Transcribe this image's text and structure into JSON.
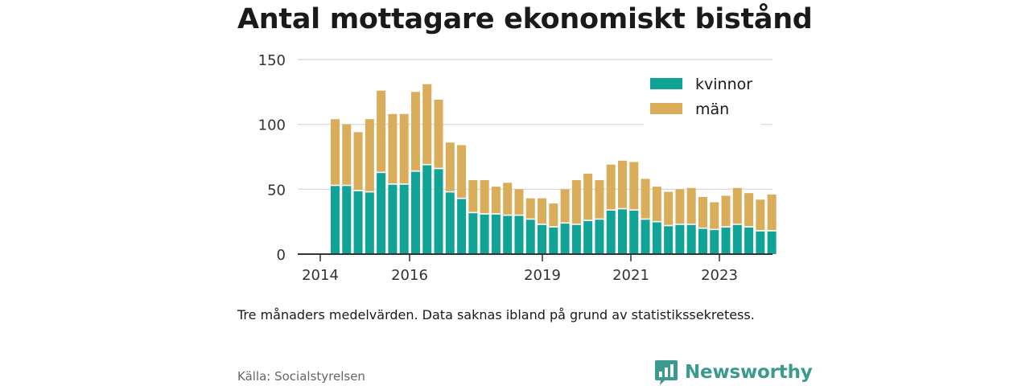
{
  "title": "Antal mottagare ekonomiskt bistånd",
  "note": "Tre månaders medelvärden. Data saknas ibland på grund av statistikssekretess.",
  "source": "Källa: Socialstyrelsen",
  "brand": {
    "name": "Newsworthy",
    "icon": "bar-chart-speech-bubble-icon"
  },
  "colors": {
    "kvinnor": "#12a397",
    "man": "#d9ad59",
    "brand": "#3a9a8f"
  },
  "chart_data": {
    "type": "bar",
    "stacked": true,
    "title": "Antal mottagare ekonomiskt bistånd",
    "xlabel": "",
    "ylabel": "",
    "ylim": [
      0,
      150
    ],
    "grid": true,
    "legend_position": "top-right",
    "y_ticks": [
      "0",
      "50",
      "100",
      "150"
    ],
    "x_ticks": [
      "2014",
      "2016",
      "2019",
      "2021",
      "2023"
    ],
    "series": [
      {
        "name": "kvinnor",
        "color": "#12a397",
        "values": [
          53,
          53,
          49,
          48,
          63,
          54,
          54,
          64,
          69,
          66,
          48,
          43,
          32,
          31,
          31,
          30,
          30,
          27,
          23,
          21,
          24,
          23,
          26,
          27,
          34,
          35,
          34,
          27,
          25,
          22,
          23,
          23,
          20,
          19,
          21,
          23,
          21,
          18,
          18
        ]
      },
      {
        "name": "män",
        "color": "#d9ad59",
        "values": [
          51,
          47,
          45,
          56,
          63,
          54,
          54,
          61,
          62,
          53,
          38,
          41,
          25,
          26,
          21,
          25,
          20,
          16,
          20,
          18,
          26,
          34,
          36,
          30,
          35,
          37,
          37,
          31,
          27,
          26,
          27,
          28,
          24,
          21,
          24,
          28,
          26,
          24,
          28
        ]
      }
    ]
  }
}
